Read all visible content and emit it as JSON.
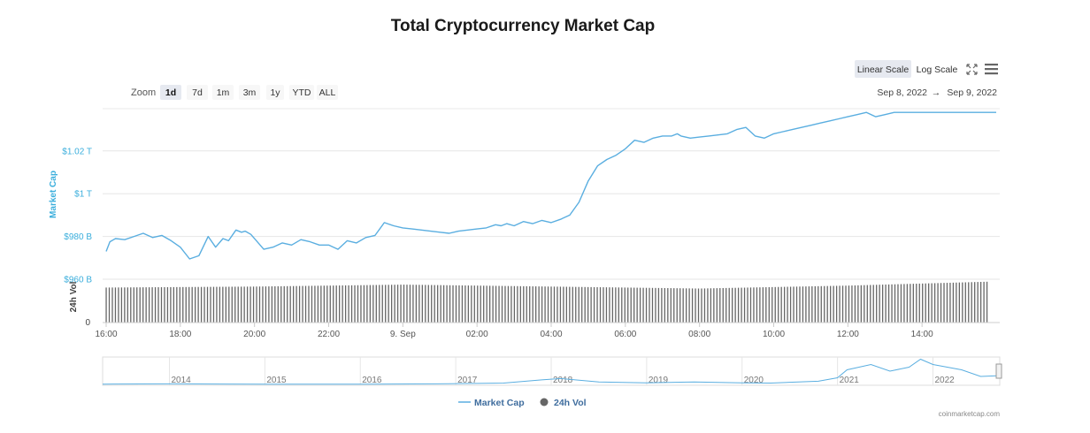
{
  "chart_data": {
    "type": "line",
    "title": "Total Cryptocurrency Market Cap",
    "zoom_label": "Zoom",
    "zoom_buttons": [
      "1d",
      "7d",
      "1m",
      "3m",
      "1y",
      "YTD",
      "ALL"
    ],
    "zoom_selected": "1d",
    "scale_buttons": [
      "Linear Scale",
      "Log Scale"
    ],
    "scale_selected": "Linear Scale",
    "range_from": "Sep 8, 2022",
    "range_arrow": "→",
    "range_to": "Sep 9, 2022",
    "y_axis_title": "Market Cap",
    "y_axis_ticks": [
      "$960 B",
      "$980 B",
      "$1 T",
      "$1.02 T"
    ],
    "y_ylim_billions": [
      960,
      1025
    ],
    "vol_axis_title": "24h Vol",
    "vol_axis_ticks": [
      "0"
    ],
    "x_ticks": [
      "16:00",
      "18:00",
      "20:00",
      "22:00",
      "9. Sep",
      "02:00",
      "04:00",
      "06:00",
      "08:00",
      "10:00",
      "12:00",
      "14:00"
    ],
    "navigator_ticks": [
      "2014",
      "2015",
      "2016",
      "2017",
      "2018",
      "2019",
      "2020",
      "2021",
      "2022"
    ],
    "legend": [
      {
        "name": "Market Cap",
        "color": "#5aaee0"
      },
      {
        "name": "24h Vol",
        "color": "#666666"
      }
    ],
    "series": [
      {
        "name": "Market Cap",
        "unit": "billion USD",
        "color": "#5aaee0",
        "x_hours": [
          0,
          0.2,
          0.5,
          1,
          1.5,
          2,
          2.5,
          3,
          3.5,
          4,
          4.5,
          5,
          5.5,
          5.9,
          6.3,
          6.6,
          7,
          7.3,
          7.5,
          7.8,
          8.1,
          8.5,
          9,
          9.5,
          10,
          10.5,
          11,
          11.5,
          12,
          12.5,
          13,
          13.5,
          14,
          14.5,
          15,
          15.5,
          16,
          16.5,
          17,
          17.5,
          18,
          18.5,
          19,
          19.5,
          20,
          20.5,
          21,
          21.3,
          21.6,
          22,
          22.5,
          23,
          23.5,
          24,
          24.5,
          25,
          25.5,
          26,
          26.5,
          27,
          27.5,
          28,
          28.5,
          29,
          29.5,
          30,
          30.5,
          30.8,
          31,
          31.5,
          32,
          32.5,
          33,
          33.5,
          34,
          34.5,
          35,
          35.5,
          36,
          36.5,
          37,
          37.5,
          38,
          38.5,
          39,
          39.5,
          40,
          40.5,
          41,
          41.5,
          42,
          42.5,
          43,
          43.5,
          44,
          44.5,
          45,
          45.5,
          46,
          46.5,
          47,
          47.5,
          48
        ],
        "values": [
          973,
          977.5,
          979,
          978.5,
          980,
          981.5,
          979.5,
          980.5,
          978,
          975,
          969.5,
          971,
          980,
          975,
          979,
          978,
          983,
          982,
          982.5,
          981,
          978,
          974,
          975,
          977,
          976,
          978.5,
          977.5,
          976,
          976,
          974,
          978,
          977,
          979.5,
          980.5,
          986.5,
          985,
          984,
          983.5,
          983,
          982.5,
          982,
          981.5,
          982.5,
          983,
          983.5,
          984,
          985.5,
          985,
          986,
          985,
          987,
          986,
          987.5,
          986.5,
          988,
          990,
          996,
          1006,
          1013,
          1016,
          1018,
          1021,
          1025,
          1024,
          1026,
          1027,
          1027,
          1028,
          1027,
          1026,
          1026.5,
          1027,
          1027.5,
          1028,
          1030,
          1031,
          1027,
          1026,
          1028,
          1029,
          1030,
          1031,
          1032,
          1033,
          1034,
          1035,
          1036,
          1037,
          1038,
          1036,
          1037,
          1038,
          1038,
          1038,
          1038,
          1038,
          1038,
          1038,
          1038,
          1038,
          1038,
          1038,
          1038
        ]
      },
      {
        "name": "24h Vol",
        "unit": "relative",
        "color": "#666666",
        "x_hours": [
          0,
          8,
          16,
          24,
          32,
          40,
          47.5
        ],
        "values": [
          0.72,
          0.74,
          0.78,
          0.74,
          0.7,
          0.76,
          0.84
        ]
      }
    ],
    "navigator_series": {
      "name": "Market Cap (all time, relative)",
      "x_years": [
        2013.3,
        2014,
        2015,
        2016,
        2016.8,
        2017.5,
        2017.9,
        2018.1,
        2018.5,
        2019,
        2019.5,
        2020,
        2020.3,
        2020.8,
        2021.0,
        2021.1,
        2021.35,
        2021.55,
        2021.75,
        2021.87,
        2022.0,
        2022.3,
        2022.5,
        2022.7
      ],
      "values": [
        0.01,
        0.02,
        0.01,
        0.01,
        0.02,
        0.05,
        0.17,
        0.22,
        0.09,
        0.06,
        0.09,
        0.06,
        0.05,
        0.12,
        0.25,
        0.55,
        0.75,
        0.5,
        0.65,
        0.95,
        0.75,
        0.55,
        0.3,
        0.33
      ]
    },
    "credit": "coinmarketcap.com"
  }
}
